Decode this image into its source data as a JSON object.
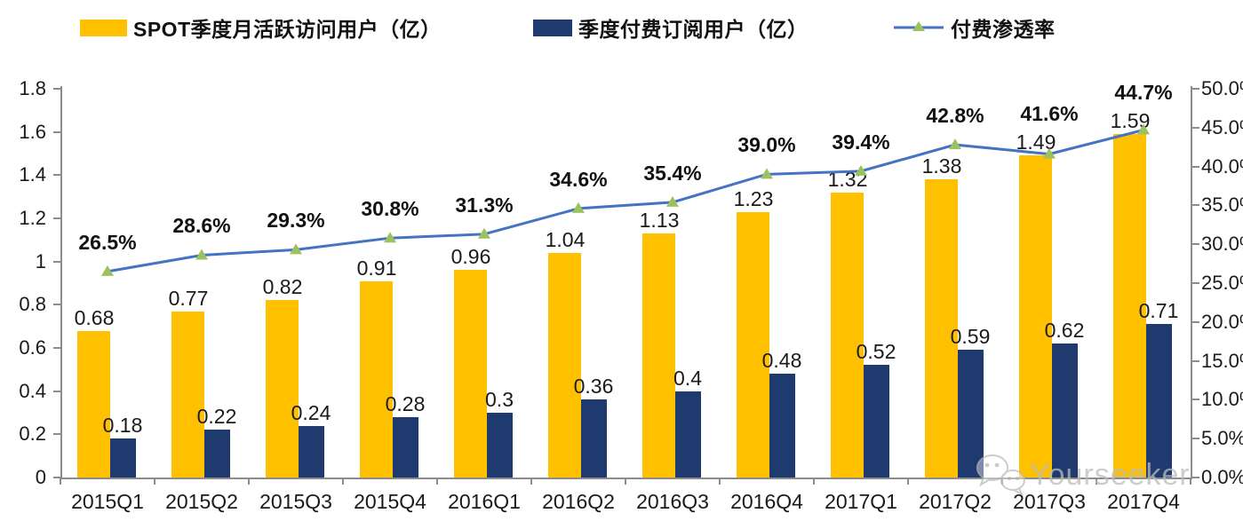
{
  "legend": {
    "mau_label": "SPOT季度月活跃访问用户（亿）",
    "subs_label": "季度付费订阅用户（亿）",
    "penetration_label": "付费渗透率"
  },
  "colors": {
    "mau_bar": "#FFC000",
    "subs_bar": "#1F3A6E",
    "penetration_line": "#4472C4",
    "penetration_marker": "#9CC25F",
    "axis": "#8c8c8c",
    "watermark": "#bcbcbc"
  },
  "watermark": {
    "icon": "wechat-icon",
    "text": "Yourseeker"
  },
  "chart_data": {
    "type": "bar",
    "subtype": "clustered bars with secondary-axis line",
    "categories": [
      "2015Q1",
      "2015Q2",
      "2015Q3",
      "2015Q4",
      "2016Q1",
      "2016Q2",
      "2016Q3",
      "2016Q4",
      "2017Q1",
      "2017Q2",
      "2017Q3",
      "2017Q4"
    ],
    "series": [
      {
        "name": "SPOT季度月活跃访问用户（亿）",
        "type": "bar",
        "axis": "left",
        "values": [
          0.68,
          0.77,
          0.82,
          0.91,
          0.96,
          1.04,
          1.13,
          1.23,
          1.32,
          1.38,
          1.49,
          1.59
        ],
        "labels": [
          "0.68",
          "0.77",
          "0.82",
          "0.91",
          "0.96",
          "1.04",
          "1.13",
          "1.23",
          "1.32",
          "1.38",
          "1.49",
          "1.59"
        ]
      },
      {
        "name": "季度付费订阅用户（亿）",
        "type": "bar",
        "axis": "left",
        "values": [
          0.18,
          0.22,
          0.24,
          0.28,
          0.3,
          0.36,
          0.4,
          0.48,
          0.52,
          0.59,
          0.62,
          0.71
        ],
        "labels": [
          "0.18",
          "0.22",
          "0.24",
          "0.28",
          "0.3",
          "0.36",
          "0.4",
          "0.48",
          "0.52",
          "0.59",
          "0.62",
          "0.71"
        ]
      },
      {
        "name": "付费渗透率",
        "type": "line",
        "axis": "right",
        "marker": "triangle",
        "values": [
          26.5,
          28.6,
          29.3,
          30.8,
          31.3,
          34.6,
          35.4,
          39.0,
          39.4,
          42.8,
          41.6,
          44.7
        ],
        "labels": [
          "26.5%",
          "28.6%",
          "29.3%",
          "30.8%",
          "31.3%",
          "34.6%",
          "35.4%",
          "39.0%",
          "39.4%",
          "42.8%",
          "41.6%",
          "44.7%"
        ]
      }
    ],
    "left_axis": {
      "min": 0,
      "max": 1.8,
      "step": 0.2,
      "ticks": [
        "0",
        "0.2",
        "0.4",
        "0.6",
        "0.8",
        "1",
        "1.2",
        "1.4",
        "1.6",
        "1.8"
      ]
    },
    "right_axis": {
      "min": 0,
      "max": 50,
      "step": 5,
      "ticks": [
        "0.0%",
        "5.0%",
        "10.0%",
        "15.0%",
        "20.0%",
        "25.0%",
        "30.0%",
        "35.0%",
        "40.0%",
        "45.0%",
        "50.0%"
      ]
    },
    "grid": false,
    "legend_position": "top"
  }
}
